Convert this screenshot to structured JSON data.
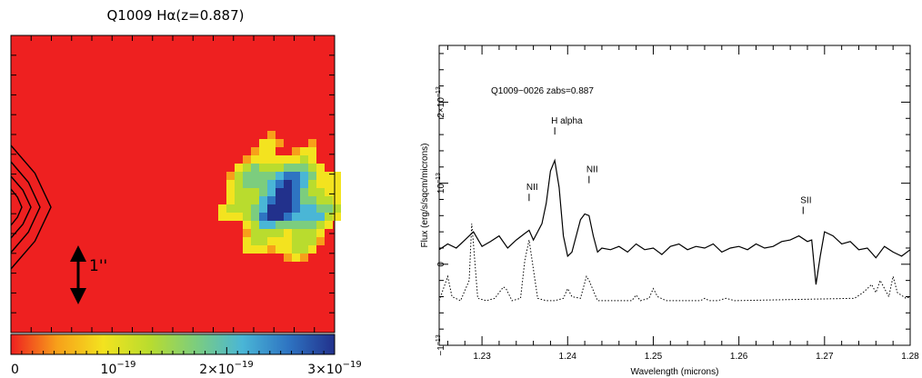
{
  "chart_data": [
    {
      "type": "heatmap",
      "title": "Q1009 Hα(z=0.887)",
      "colorbar": {
        "ticks": [
          "0",
          "10",
          "2×10",
          "3×10"
        ],
        "tick_exponents": [
          "",
          "−19",
          "−19",
          "−19"
        ],
        "range": [
          0,
          3e-19
        ],
        "colors": [
          "#ee2020",
          "#f7a01a",
          "#f3e31f",
          "#b9dc2e",
          "#7ccd7e",
          "#4ab6d6",
          "#2e74c2",
          "#22318c"
        ]
      },
      "scale_bar": "1''",
      "background_color": "#ee2020"
    },
    {
      "type": "line",
      "annotation": "Q1009−0026 zabs=0.887",
      "xlabel": "Wavelength (microns)",
      "ylabel": "Flux (erg/s/sqcm/microns)",
      "xlim": [
        1.225,
        1.28
      ],
      "ylim": [
        -1e-13,
        2.7e-13
      ],
      "x_ticks": [
        "1.23",
        "1.24",
        "1.25",
        "1.26",
        "1.27",
        "1.28"
      ],
      "y_ticks": [
        {
          "mantissa": "−1",
          "exp": "−13",
          "value": -1e-13
        },
        {
          "mantissa": "0",
          "exp": "",
          "value": 0
        },
        {
          "mantissa": "10",
          "exp": "−13",
          "value": 1e-13
        },
        {
          "mantissa": "2×10",
          "exp": "−13",
          "value": 2e-13
        }
      ],
      "line_labels": [
        {
          "label": "NII",
          "x": 1.2355,
          "y": 7.8e-14
        },
        {
          "label": "H alpha",
          "x": 1.2385,
          "y": 1.6e-13
        },
        {
          "label": "NII",
          "x": 1.2425,
          "y": 1e-13
        },
        {
          "label": "SII",
          "x": 1.2675,
          "y": 6.2e-14
        }
      ],
      "series": [
        {
          "style": "solid",
          "x": [
            1.225,
            1.226,
            1.227,
            1.228,
            1.229,
            1.23,
            1.231,
            1.232,
            1.233,
            1.234,
            1.235,
            1.2355,
            1.236,
            1.237,
            1.2375,
            1.238,
            1.2385,
            1.239,
            1.2395,
            1.24,
            1.2405,
            1.241,
            1.2415,
            1.242,
            1.2425,
            1.243,
            1.2435,
            1.244,
            1.245,
            1.246,
            1.247,
            1.248,
            1.249,
            1.25,
            1.251,
            1.252,
            1.253,
            1.254,
            1.255,
            1.256,
            1.257,
            1.258,
            1.259,
            1.26,
            1.261,
            1.262,
            1.263,
            1.264,
            1.265,
            1.266,
            1.267,
            1.268,
            1.2685,
            1.269,
            1.2695,
            1.27,
            1.271,
            1.272,
            1.273,
            1.274,
            1.275,
            1.276,
            1.277,
            1.278,
            1.279,
            1.28
          ],
          "y": [
            1.8e-14,
            2.5e-14,
            2e-14,
            3e-14,
            4e-14,
            2.2e-14,
            2.8e-14,
            3.5e-14,
            2e-14,
            3e-14,
            3.8e-14,
            4.2e-14,
            3e-14,
            5e-14,
            7.5e-14,
            1.15e-13,
            1.28e-13,
            9.5e-14,
            3.5e-14,
            1e-14,
            1.5e-14,
            3.5e-14,
            5.5e-14,
            6.2e-14,
            6e-14,
            3.5e-14,
            1.5e-14,
            2e-14,
            1.8e-14,
            2.2e-14,
            1.5e-14,
            2.5e-14,
            1.8e-14,
            2e-14,
            1.2e-14,
            2.2e-14,
            2.5e-14,
            1.8e-14,
            2.2e-14,
            2e-14,
            2.5e-14,
            1.5e-14,
            2e-14,
            2.2e-14,
            1.8e-14,
            2.5e-14,
            2e-14,
            2.2e-14,
            2.8e-14,
            3e-14,
            3.5e-14,
            2.8e-14,
            3e-14,
            -2.5e-14,
            1e-14,
            4e-14,
            3.5e-14,
            2.5e-14,
            2.8e-14,
            1.8e-14,
            2e-14,
            8e-15,
            2.2e-14,
            1.5e-14,
            1e-14,
            1.8e-14
          ]
        },
        {
          "style": "dotted",
          "x": [
            1.225,
            1.226,
            1.2265,
            1.2275,
            1.2285,
            1.2288,
            1.229,
            1.2295,
            1.2305,
            1.2315,
            1.2325,
            1.2328,
            1.2335,
            1.2345,
            1.235,
            1.2355,
            1.2365,
            1.2375,
            1.2385,
            1.2395,
            1.24,
            1.2405,
            1.2415,
            1.2422,
            1.2425,
            1.2435,
            1.2445,
            1.2475,
            1.248,
            1.2485,
            1.2495,
            1.25,
            1.2505,
            1.2515,
            1.2555,
            1.256,
            1.2565,
            1.2575,
            1.2585,
            1.2595,
            1.2735,
            1.2745,
            1.2755,
            1.276,
            1.2765,
            1.2775,
            1.278,
            1.2785,
            1.2795,
            1.28
          ],
          "y": [
            -4.5e-14,
            -1.5e-14,
            -4e-14,
            -4.5e-14,
            -2e-14,
            5e-14,
            2.5e-14,
            -4.2e-14,
            -4.5e-14,
            -4.2e-14,
            -2.8e-14,
            -3e-14,
            -4.5e-14,
            -4.2e-14,
            5e-15,
            3e-14,
            -4.2e-14,
            -4.5e-14,
            -4.5e-14,
            -4.2e-14,
            -3e-14,
            -4e-14,
            -4.2e-14,
            -1.5e-14,
            -2e-14,
            -4.5e-14,
            -4.5e-14,
            -4.5e-14,
            -3.8e-14,
            -4.5e-14,
            -4.2e-14,
            -3e-14,
            -4e-14,
            -4.5e-14,
            -4.5e-14,
            -4.2e-14,
            -4.5e-14,
            -4.5e-14,
            -4.2e-14,
            -4.5e-14,
            -4.2e-14,
            -3.5e-14,
            -2.5e-14,
            -3.5e-14,
            -2e-14,
            -4e-14,
            -1.5e-14,
            -3.5e-14,
            -4.2e-14,
            -4e-14
          ]
        }
      ]
    }
  ]
}
